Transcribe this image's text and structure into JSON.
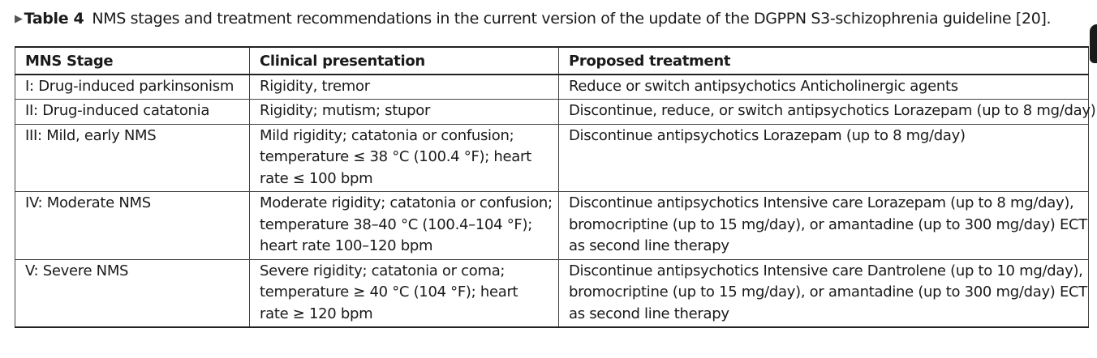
{
  "caption": {
    "marker": "▶",
    "label": "Table 4",
    "text": "NMS stages and treatment recommendations in the current version of the update of the DGPPN S3-schizophrenia guideline [20]."
  },
  "table": {
    "headers": [
      "MNS Stage",
      "Clinical presentation",
      "Proposed treatment"
    ],
    "rows": [
      {
        "stage": "I: Drug-induced parkinsonism",
        "presentation": [
          "Rigidity, tremor"
        ],
        "treatment": [
          "Reduce or switch antipsychotics Anticholinergic agents"
        ]
      },
      {
        "stage": "II: Drug-induced catatonia",
        "presentation": [
          "Rigidity; mutism; stupor"
        ],
        "treatment": [
          "Discontinue, reduce, or switch antipsychotics Lorazepam (up to 8 mg/day)"
        ]
      },
      {
        "stage": "III: Mild, early NMS",
        "presentation": [
          "Mild rigidity; catatonia or confusion;",
          "temperature ≤ 38 °C (100.4 °F); heart",
          "rate ≤ 100 bpm"
        ],
        "treatment": [
          "Discontinue antipsychotics Lorazepam (up to 8 mg/day)"
        ]
      },
      {
        "stage": "IV: Moderate NMS",
        "presentation": [
          "Moderate rigidity; catatonia or confusion;",
          "temperature 38–40 °C (100.4–104 °F);",
          "heart rate 100–120 bpm"
        ],
        "treatment": [
          "Discontinue antipsychotics Intensive care Lorazepam (up to 8 mg/day),",
          "bromocriptine (up to 15 mg/day), or amantadine (up to 300 mg/day) ECT",
          "as second line therapy"
        ]
      },
      {
        "stage": "V: Severe NMS",
        "presentation": [
          "Severe rigidity; catatonia or coma;",
          "temperature ≥ 40 °C (104 °F); heart",
          "rate ≥ 120 bpm"
        ],
        "treatment": [
          "Discontinue antipsychotics Intensive care Dantrolene (up to 10 mg/day),",
          "bromocriptine (up to 15 mg/day), or amantadine (up to 300 mg/day) ECT",
          "as second line therapy"
        ]
      }
    ]
  }
}
